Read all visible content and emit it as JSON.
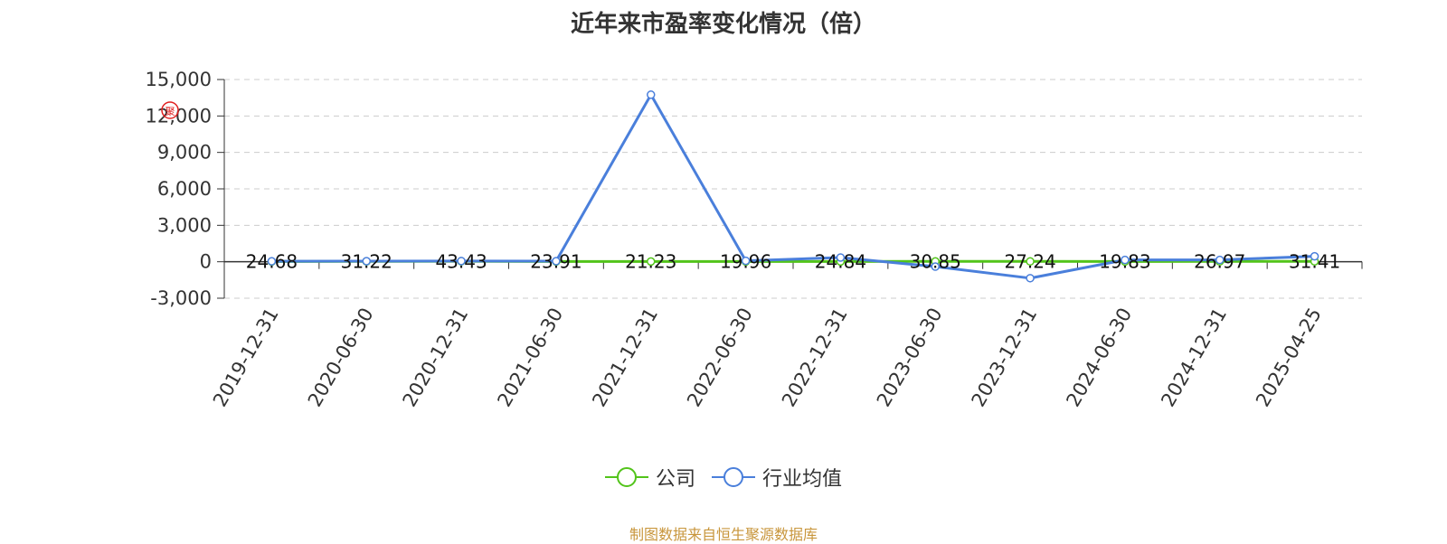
{
  "chart_data": {
    "type": "line",
    "title": "近年来市盈率变化情况（倍）",
    "categories": [
      "2019-12-31",
      "2020-06-30",
      "2020-12-31",
      "2021-06-30",
      "2021-12-31",
      "2022-06-30",
      "2022-12-31",
      "2023-06-30",
      "2023-12-31",
      "2024-06-30",
      "2024-12-31",
      "2025-04-25"
    ],
    "ylim": [
      -3000,
      15000
    ],
    "yticks": [
      -3000,
      0,
      3000,
      6000,
      9000,
      12000,
      15000
    ],
    "ytick_labels": [
      "-3,000",
      "0",
      "3,000",
      "6,000",
      "9,000",
      "12,000",
      "15,000"
    ],
    "grid": true,
    "legend_position": "bottom",
    "series": [
      {
        "name": "公司",
        "color": "#52c41a",
        "values": [
          24.68,
          31.22,
          43.43,
          23.91,
          21.23,
          19.96,
          24.84,
          30.85,
          27.24,
          19.83,
          26.97,
          31.41
        ],
        "labels": [
          "24.68",
          "31.22",
          "43.43",
          "23.91",
          "21.23",
          "19.96",
          "24.84",
          "30.85",
          "27.24",
          "19.83",
          "26.97",
          "31.41"
        ]
      },
      {
        "name": "行业均值",
        "color": "#4a7fdb",
        "values": [
          40,
          50,
          60,
          50,
          13750,
          80,
          350,
          -400,
          -1350,
          150,
          150,
          450
        ]
      }
    ]
  },
  "watermark": "制图数据来自恒生聚源数据库"
}
